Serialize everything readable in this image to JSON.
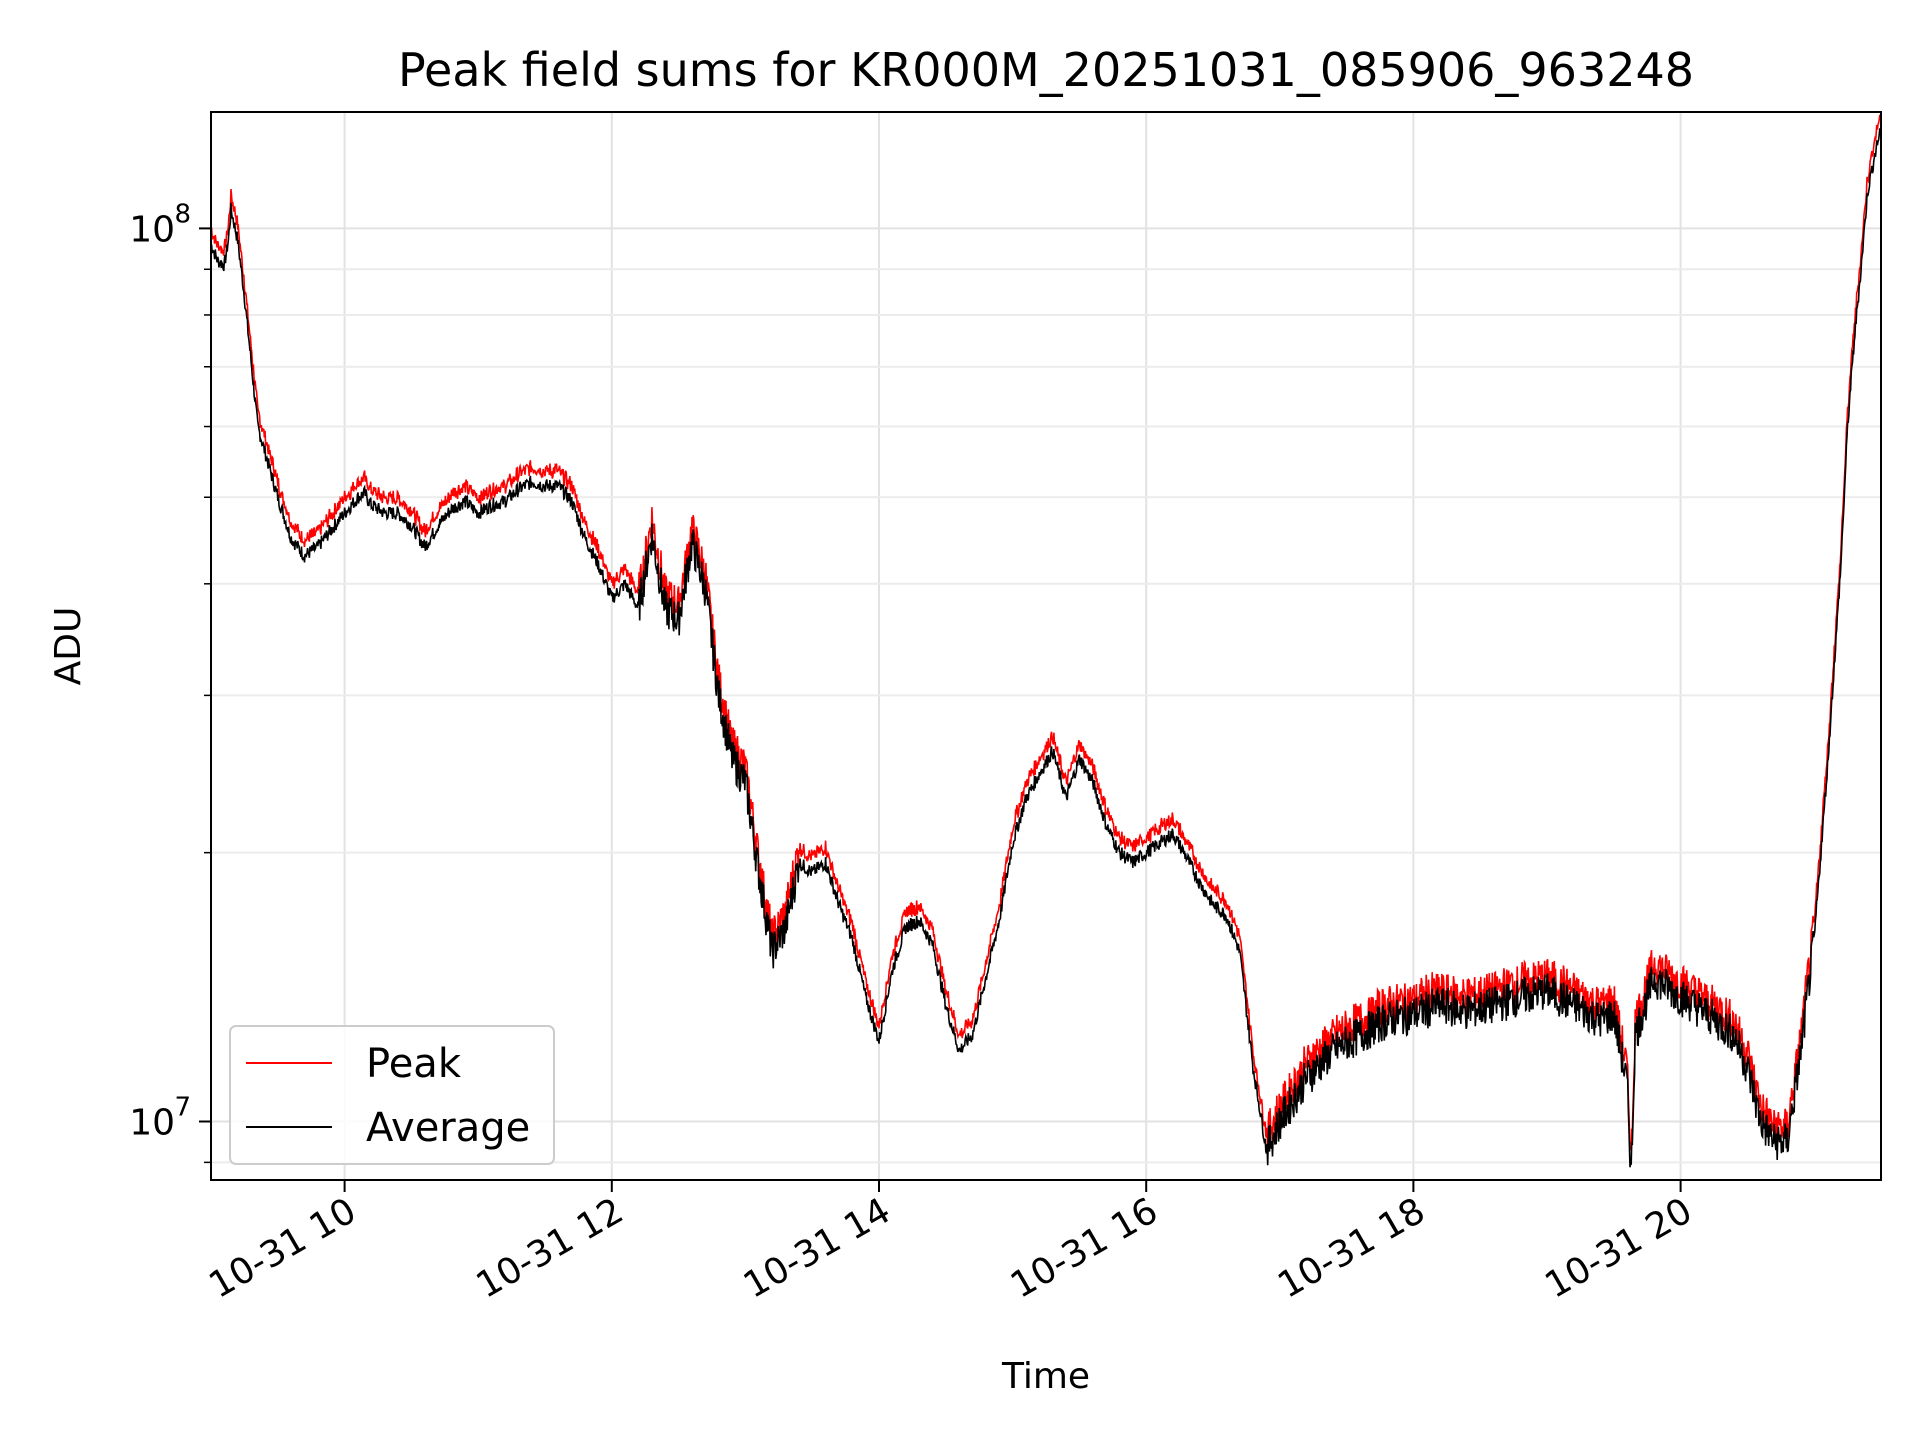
{
  "chart_data": {
    "type": "line",
    "title": "Peak field sums for KR000M_20251031_085906_963248",
    "xlabel": "Time",
    "ylabel": "ADU",
    "yscale": "log",
    "ylim": [
      8600000,
      135000000
    ],
    "xlim_hours": [
      9.0,
      21.5
    ],
    "x_tick_values": [
      10,
      12,
      14,
      16,
      18,
      20
    ],
    "x_tick_labels": [
      "10-31 10",
      "10-31 12",
      "10-31 14",
      "10-31 16",
      "10-31 18",
      "10-31 20"
    ],
    "y_tick_values": [
      10000000,
      100000000
    ],
    "y_tick_labels": [
      {
        "base": "10",
        "exp": "7"
      },
      {
        "base": "10",
        "exp": "8"
      }
    ],
    "grid": true,
    "legend_position": "lower-left",
    "x_unit": "hour of day (2025-10-31)",
    "series": [
      {
        "name": "Peak",
        "color": "#ff0000",
        "ratio_to_average": 1.04
      },
      {
        "name": "Average",
        "color": "#000000"
      }
    ],
    "average_points": [
      [
        9.0,
        96000000
      ],
      [
        9.05,
        92000000
      ],
      [
        9.1,
        91000000
      ],
      [
        9.13,
        97000000
      ],
      [
        9.15,
        105000000
      ],
      [
        9.2,
        97000000
      ],
      [
        9.25,
        84000000
      ],
      [
        9.35,
        60000000
      ],
      [
        9.5,
        50000000
      ],
      [
        9.6,
        45000000
      ],
      [
        9.7,
        43000000
      ],
      [
        9.8,
        44000000
      ],
      [
        9.9,
        46000000
      ],
      [
        10.0,
        48000000
      ],
      [
        10.1,
        50000000
      ],
      [
        10.15,
        50500000
      ],
      [
        10.2,
        49000000
      ],
      [
        10.3,
        48000000
      ],
      [
        10.4,
        48000000
      ],
      [
        10.5,
        46500000
      ],
      [
        10.6,
        44000000
      ],
      [
        10.7,
        46500000
      ],
      [
        10.8,
        48500000
      ],
      [
        10.9,
        49500000
      ],
      [
        11.0,
        48000000
      ],
      [
        11.1,
        49000000
      ],
      [
        11.2,
        49500000
      ],
      [
        11.3,
        51000000
      ],
      [
        11.4,
        52000000
      ],
      [
        11.5,
        51500000
      ],
      [
        11.6,
        51500000
      ],
      [
        11.7,
        49500000
      ],
      [
        11.8,
        45000000
      ],
      [
        11.9,
        42000000
      ],
      [
        12.0,
        38500000
      ],
      [
        12.1,
        40000000
      ],
      [
        12.2,
        37500000
      ],
      [
        12.3,
        45500000
      ],
      [
        12.4,
        37500000
      ],
      [
        12.5,
        36500000
      ],
      [
        12.6,
        44500000
      ],
      [
        12.7,
        39500000
      ],
      [
        12.8,
        30000000
      ],
      [
        12.9,
        25500000
      ],
      [
        13.0,
        24000000
      ],
      [
        13.1,
        19000000
      ],
      [
        13.2,
        15500000
      ],
      [
        13.3,
        16500000
      ],
      [
        13.4,
        19500000
      ],
      [
        13.5,
        19000000
      ],
      [
        13.6,
        19500000
      ],
      [
        13.7,
        17500000
      ],
      [
        13.8,
        16000000
      ],
      [
        13.9,
        13800000
      ],
      [
        14.0,
        12300000
      ],
      [
        14.1,
        14800000
      ],
      [
        14.2,
        16500000
      ],
      [
        14.3,
        16800000
      ],
      [
        14.4,
        15800000
      ],
      [
        14.5,
        13500000
      ],
      [
        14.6,
        12000000
      ],
      [
        14.7,
        12500000
      ],
      [
        14.8,
        14500000
      ],
      [
        14.9,
        16800000
      ],
      [
        15.0,
        20500000
      ],
      [
        15.1,
        23000000
      ],
      [
        15.2,
        24500000
      ],
      [
        15.3,
        26000000
      ],
      [
        15.4,
        23000000
      ],
      [
        15.5,
        25500000
      ],
      [
        15.6,
        24000000
      ],
      [
        15.7,
        21500000
      ],
      [
        15.8,
        20000000
      ],
      [
        15.9,
        19500000
      ],
      [
        16.0,
        20000000
      ],
      [
        16.1,
        20500000
      ],
      [
        16.2,
        21000000
      ],
      [
        16.3,
        19800000
      ],
      [
        16.4,
        18500000
      ],
      [
        16.5,
        17500000
      ],
      [
        16.6,
        17000000
      ],
      [
        16.7,
        15500000
      ],
      [
        16.8,
        11500000
      ],
      [
        16.9,
        9300000
      ],
      [
        17.0,
        10000000
      ],
      [
        17.2,
        11200000
      ],
      [
        17.4,
        12000000
      ],
      [
        17.6,
        12500000
      ],
      [
        17.8,
        13000000
      ],
      [
        18.0,
        13200000
      ],
      [
        18.2,
        13500000
      ],
      [
        18.4,
        13300000
      ],
      [
        18.6,
        13500000
      ],
      [
        18.8,
        13800000
      ],
      [
        19.0,
        14000000
      ],
      [
        19.2,
        13500000
      ],
      [
        19.4,
        13000000
      ],
      [
        19.5,
        13200000
      ],
      [
        19.6,
        11000000
      ],
      [
        19.63,
        8700000
      ],
      [
        19.66,
        12500000
      ],
      [
        19.8,
        14500000
      ],
      [
        20.0,
        13800000
      ],
      [
        20.2,
        13200000
      ],
      [
        20.4,
        12500000
      ],
      [
        20.5,
        11500000
      ],
      [
        20.6,
        10000000
      ],
      [
        20.7,
        9500000
      ],
      [
        20.8,
        9500000
      ],
      [
        20.9,
        12000000
      ],
      [
        21.0,
        16000000
      ],
      [
        21.1,
        25000000
      ],
      [
        21.2,
        42000000
      ],
      [
        21.25,
        60000000
      ],
      [
        21.3,
        75000000
      ],
      [
        21.35,
        90000000
      ],
      [
        21.4,
        110000000
      ],
      [
        21.45,
        120000000
      ],
      [
        21.5,
        130000000
      ]
    ]
  }
}
